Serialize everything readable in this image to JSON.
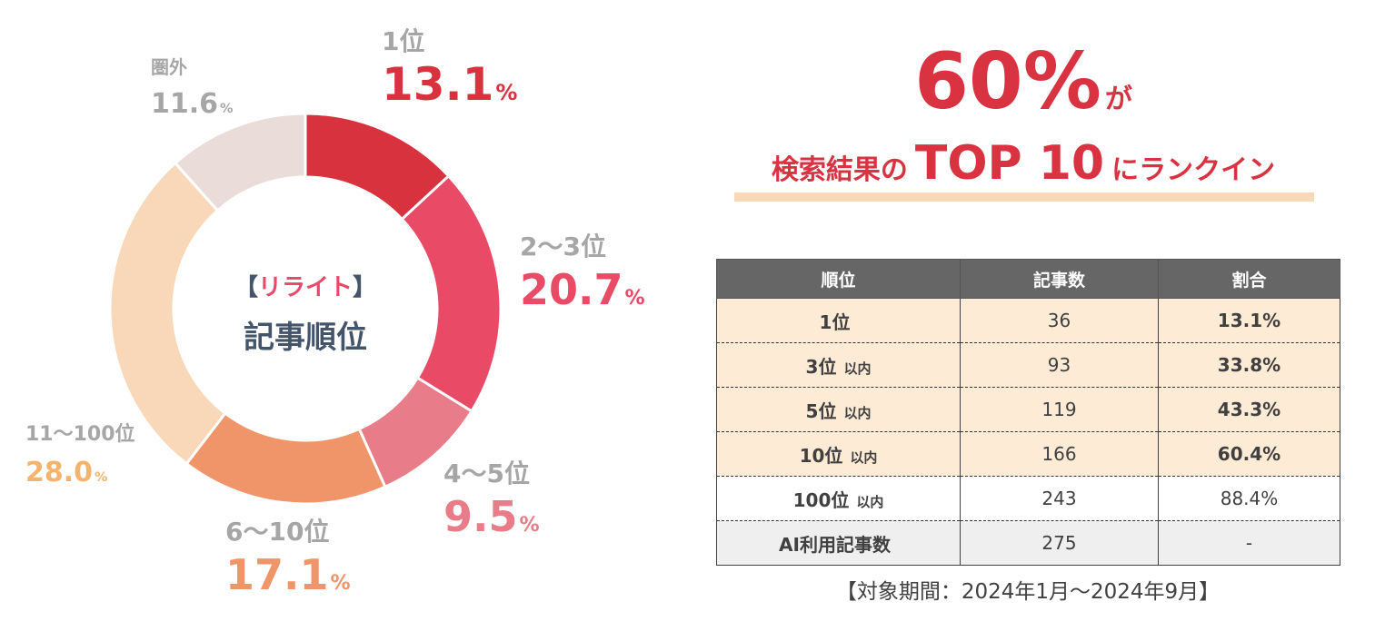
{
  "chart_data": {
    "type": "pie",
    "variant": "donut",
    "title": "【リライト】記事順位",
    "title_bracket_open": "【",
    "title_highlight": "リライト",
    "title_bracket_close": "】",
    "title_main": "記事順位",
    "slices": [
      {
        "label": "1位",
        "value": 13.1,
        "display": "13.1",
        "unit": "%",
        "color": "#d9323f",
        "label_color": "#d9323f"
      },
      {
        "label": "2〜3位",
        "value": 20.7,
        "display": "20.7",
        "unit": "%",
        "color": "#e94a66",
        "label_color": "#e94a66"
      },
      {
        "label": "4〜5位",
        "value": 9.5,
        "display": "9.5",
        "unit": "%",
        "color": "#e87c88",
        "label_color": "#e87c88"
      },
      {
        "label": "6〜10位",
        "value": 17.1,
        "display": "17.1",
        "unit": "%",
        "color": "#f0956a",
        "label_color": "#f0956a"
      },
      {
        "label": "11〜100位",
        "value": 28.0,
        "display": "28.0",
        "unit": "%",
        "color": "#f8d8b8",
        "label_color": "#f4b46e"
      },
      {
        "label": "圏外",
        "value": 11.6,
        "display": "11.6",
        "unit": "%",
        "color": "#eadcd9",
        "label_color": "#a6a6a6"
      }
    ]
  },
  "headline": {
    "big": "60%",
    "suffix": "が",
    "line2_before": "検索結果の",
    "line2_highlight": "TOP 10",
    "line2_after": "にランクイン"
  },
  "table": {
    "headers": [
      "順位",
      "記事数",
      "割合"
    ],
    "rows": [
      {
        "rank": "1位",
        "suffix": "",
        "count": "36",
        "ratio": "13.1%"
      },
      {
        "rank": "3位",
        "suffix": "以内",
        "count": "93",
        "ratio": "33.8%"
      },
      {
        "rank": "5位",
        "suffix": "以内",
        "count": "119",
        "ratio": "43.3%"
      },
      {
        "rank": "10位",
        "suffix": "以内",
        "count": "166",
        "ratio": "60.4%"
      },
      {
        "rank": "100位",
        "suffix": "以内",
        "count": "243",
        "ratio": "88.4%"
      },
      {
        "rank": "AI利用記事数",
        "suffix": "",
        "count": "275",
        "ratio": "-"
      }
    ]
  },
  "period": "【対象期間：2024年1月〜2024年9月】",
  "colors": {
    "accent": "#d93240",
    "header_bg": "#666666",
    "row_highlight": "#fdebd5",
    "row_gray": "#efefef"
  }
}
